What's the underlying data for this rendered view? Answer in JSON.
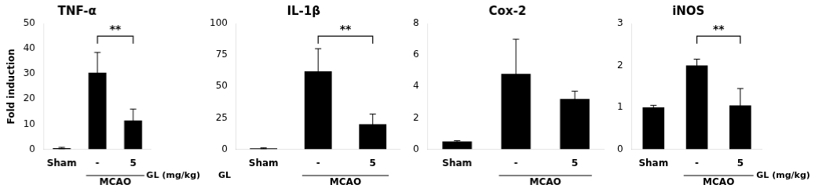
{
  "chart_data": [
    {
      "type": "bar",
      "title": "TNF-α",
      "categories": [
        "Sham",
        "-",
        "5"
      ],
      "values": [
        0.5,
        30.5,
        11.5
      ],
      "errors": [
        0.3,
        8.0,
        4.5
      ],
      "color": "#000000",
      "ylim": [
        0,
        50
      ],
      "yticks": [
        0,
        10,
        20,
        30,
        40,
        50
      ],
      "ylabel": "Fold induction",
      "grid": false,
      "significance": [
        {
          "from": "-",
          "to": "5",
          "label": "**"
        }
      ],
      "annotations": [
        {
          "text": "MCAO",
          "from": "-",
          "to": "5"
        },
        {
          "text": "GL (mg/kg)",
          "after": "5"
        }
      ]
    },
    {
      "type": "bar",
      "title": "IL-1β",
      "categories": [
        "Sham",
        "-",
        "5"
      ],
      "values": [
        0.8,
        62.0,
        20.0
      ],
      "errors": [
        0.4,
        18.0,
        8.0
      ],
      "color": "#000000",
      "ylim": [
        0,
        100
      ],
      "yticks": [
        0,
        25,
        50,
        75,
        100
      ],
      "grid": false,
      "significance": [
        {
          "from": "-",
          "to": "5",
          "label": "**"
        }
      ],
      "annotations": [
        {
          "text": "MCAO",
          "from": "-",
          "to": "5"
        },
        {
          "text": "GL",
          "before": "Sham"
        }
      ]
    },
    {
      "type": "bar",
      "title": "Cox-2",
      "categories": [
        "Sham",
        "-",
        "5"
      ],
      "values": [
        0.5,
        4.8,
        3.2
      ],
      "errors": [
        0.05,
        2.2,
        0.5
      ],
      "color": "#000000",
      "ylim": [
        0,
        8
      ],
      "yticks": [
        0,
        2,
        4,
        6,
        8
      ],
      "grid": false,
      "annotations": [
        {
          "text": "MCAO",
          "from": "-",
          "to": "5"
        }
      ]
    },
    {
      "type": "bar",
      "title": "iNOS",
      "categories": [
        "Sham",
        "-",
        "5"
      ],
      "values": [
        1.0,
        2.0,
        1.05
      ],
      "errors": [
        0.05,
        0.15,
        0.4
      ],
      "color": "#000000",
      "ylim": [
        0,
        3
      ],
      "yticks": [
        0,
        1,
        2,
        3
      ],
      "grid": false,
      "significance": [
        {
          "from": "-",
          "to": "5",
          "label": "**"
        }
      ],
      "annotations": [
        {
          "text": "MCAO",
          "from": "-",
          "to": "5"
        },
        {
          "text": "GL (mg/kg)",
          "after": "5"
        }
      ]
    }
  ]
}
